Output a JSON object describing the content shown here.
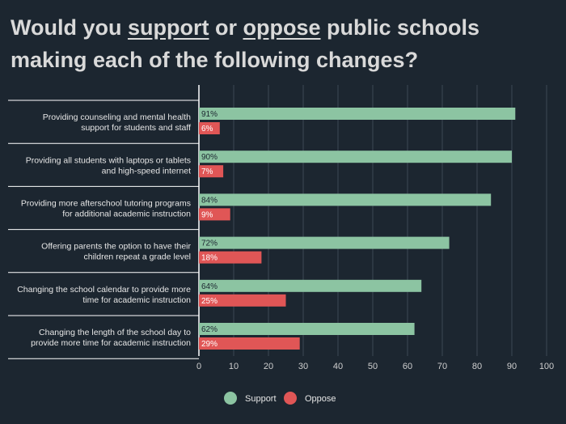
{
  "title": {
    "part1": "Would you ",
    "word_support": "support",
    "part2": " or ",
    "word_oppose": "oppose",
    "part3": " public schools making each of the following changes?"
  },
  "colors": {
    "background": "#1c2630",
    "support": "#8cc4a2",
    "oppose": "#e05656",
    "grid": "#3d4853",
    "axis": "#ffffff",
    "separator": "#ffffff"
  },
  "chart_data": {
    "type": "bar",
    "orientation": "horizontal",
    "categories": [
      [
        "Providing counseling and mental health",
        "support for students and staff"
      ],
      [
        "Providing all students with laptops or tablets",
        "and high-speed internet"
      ],
      [
        "Providing more afterschool tutoring programs",
        "for additional academic instruction"
      ],
      [
        "Offering parents the option to have their",
        "children repeat a grade level"
      ],
      [
        "Changing the school calendar to provide more",
        "time for academic instruction"
      ],
      [
        "Changing the length of the school day to",
        "provide more time for academic instruction"
      ]
    ],
    "series": [
      {
        "name": "Support",
        "color": "#8cc4a2",
        "values": [
          91,
          90,
          84,
          72,
          64,
          62
        ],
        "labels": [
          "91%",
          "90%",
          "84%",
          "72%",
          "64%",
          "62%"
        ]
      },
      {
        "name": "Oppose",
        "color": "#e05656",
        "values": [
          6,
          7,
          9,
          18,
          25,
          29
        ],
        "labels": [
          "6%",
          "7%",
          "9%",
          "18%",
          "25%",
          "29%"
        ]
      }
    ],
    "xlim": [
      0,
      100
    ],
    "xticks": [
      0,
      10,
      20,
      30,
      40,
      50,
      60,
      70,
      80,
      90,
      100
    ],
    "grid": true,
    "legend": "bottom-center"
  }
}
